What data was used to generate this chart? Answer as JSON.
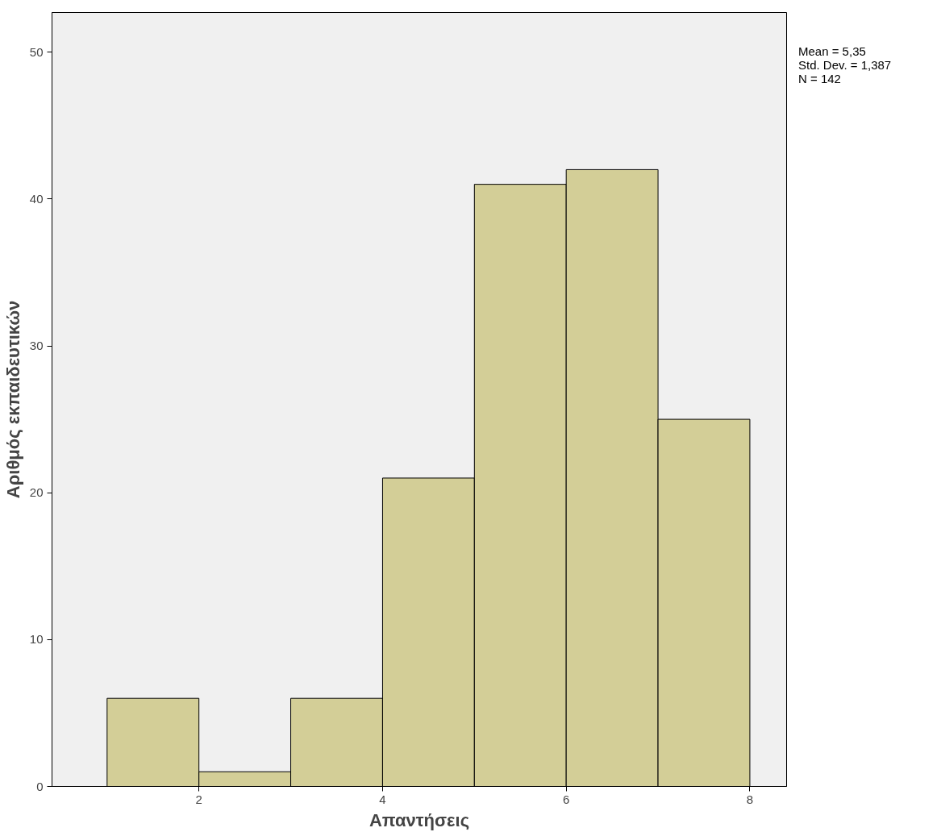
{
  "chart_data": {
    "type": "histogram",
    "bins": [
      1,
      2,
      3,
      4,
      5,
      6,
      7,
      8
    ],
    "values": [
      6,
      1,
      6,
      21,
      41,
      42,
      25
    ],
    "color": "#d3ce97",
    "xlabel": "Απαντήσεις",
    "ylabel": "Αριθμός εκπαιδευτικών",
    "xlim": [
      0.4,
      8.4
    ],
    "ylim": [
      0,
      52.7
    ],
    "xticks": [
      2,
      4,
      6,
      8
    ],
    "yticks": [
      0,
      10,
      20,
      30,
      40,
      50
    ],
    "annotations": [
      "Mean = 5,35",
      "Std. Dev. = 1,387",
      "N = 142"
    ],
    "grid": false
  }
}
